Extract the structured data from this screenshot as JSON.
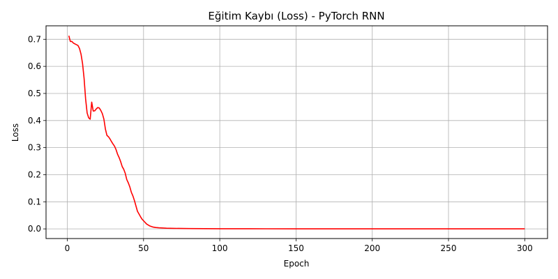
{
  "chart_data": {
    "type": "line",
    "title": "Eğitim Kaybı (Loss) - PyTorch RNN",
    "xlabel": "Epoch",
    "ylabel": "Loss",
    "xlim": [
      -13.95,
      314.95
    ],
    "ylim": [
      -0.0357,
      0.7497
    ],
    "xticks": [
      0,
      50,
      100,
      150,
      200,
      250,
      300
    ],
    "yticks": [
      0.0,
      0.1,
      0.2,
      0.3,
      0.4,
      0.5,
      0.6,
      0.7
    ],
    "grid": true,
    "line_color": "#ff0000",
    "series": [
      {
        "name": "",
        "x": [
          1,
          2,
          3,
          4,
          5,
          6,
          7,
          8,
          9,
          10,
          11,
          12,
          13,
          14,
          15,
          16,
          17,
          18,
          19,
          20,
          21,
          22,
          23,
          24,
          25,
          26,
          27,
          28,
          29,
          30,
          31,
          32,
          33,
          34,
          35,
          36,
          37,
          38,
          39,
          40,
          41,
          42,
          43,
          44,
          45,
          46,
          47,
          48,
          49,
          50,
          52,
          54,
          56,
          58,
          60,
          65,
          70,
          80,
          90,
          100,
          120,
          150,
          200,
          250,
          300
        ],
        "y": [
          0.713,
          0.692,
          0.692,
          0.686,
          0.683,
          0.68,
          0.677,
          0.666,
          0.645,
          0.61,
          0.556,
          0.48,
          0.428,
          0.41,
          0.405,
          0.468,
          0.435,
          0.436,
          0.443,
          0.448,
          0.446,
          0.437,
          0.425,
          0.405,
          0.368,
          0.345,
          0.34,
          0.332,
          0.322,
          0.313,
          0.305,
          0.292,
          0.275,
          0.263,
          0.248,
          0.23,
          0.22,
          0.205,
          0.182,
          0.17,
          0.155,
          0.135,
          0.122,
          0.105,
          0.085,
          0.065,
          0.055,
          0.045,
          0.036,
          0.03,
          0.018,
          0.011,
          0.007,
          0.005,
          0.004,
          0.0025,
          0.0018,
          0.0012,
          0.0008,
          0.0006,
          0.0004,
          0.0003,
          0.0002,
          0.0001,
          0.0001
        ]
      }
    ]
  }
}
